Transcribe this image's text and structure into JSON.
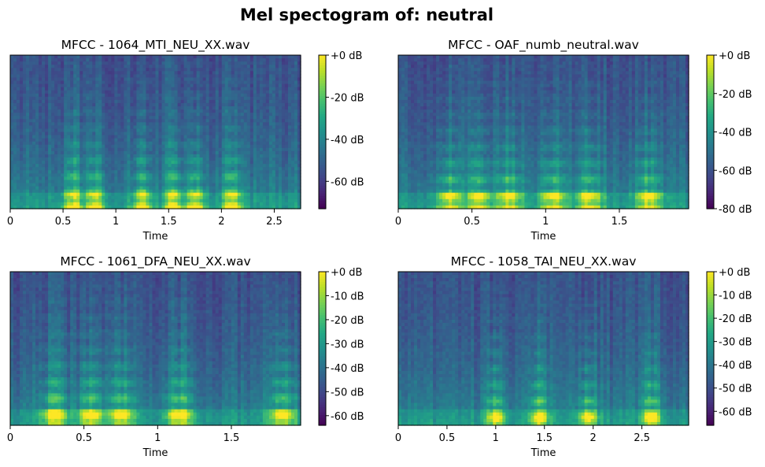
{
  "figure": {
    "suptitle": "Mel spectogram of: neutral"
  },
  "chart_data": [
    {
      "type": "heatmap",
      "title": "MFCC - 1064_MTI_NEU_XX.wav",
      "xlabel": "Time",
      "x_ticks": [
        "0",
        "0.5",
        "1",
        "1.5",
        "2",
        "2.5"
      ],
      "x_tick_values": [
        0,
        0.5,
        1,
        1.5,
        2,
        2.5
      ],
      "xlim": [
        0,
        2.75
      ],
      "colorbar": {
        "labels": [
          "+0 dB",
          "-20 dB",
          "-40 dB",
          "-60 dB"
        ],
        "values": [
          0,
          -20,
          -40,
          -60
        ],
        "range": [
          -73,
          0
        ]
      },
      "colormap": "viridis",
      "energy_bursts": [
        0.6,
        0.8,
        1.25,
        1.55,
        1.75,
        2.1
      ]
    },
    {
      "type": "heatmap",
      "title": "MFCC - OAF_numb_neutral.wav",
      "xlabel": "Time",
      "x_ticks": [
        "0",
        "0.5",
        "1",
        "1.5"
      ],
      "x_tick_values": [
        0,
        0.5,
        1,
        1.5
      ],
      "xlim": [
        0,
        1.97
      ],
      "colorbar": {
        "labels": [
          "+0 dB",
          "-20 dB",
          "-40 dB",
          "-60 dB",
          "-80 dB"
        ],
        "values": [
          0,
          -20,
          -40,
          -60,
          -80
        ],
        "range": [
          -80,
          0
        ]
      },
      "colormap": "viridis",
      "energy_bursts": [
        0.35,
        0.55,
        0.75,
        1.05,
        1.3,
        1.7
      ]
    },
    {
      "type": "heatmap",
      "title": "MFCC - 1061_DFA_NEU_XX.wav",
      "xlabel": "Time",
      "x_ticks": [
        "0",
        "0.5",
        "1",
        "1.5"
      ],
      "x_tick_values": [
        0,
        0.5,
        1,
        1.5
      ],
      "xlim": [
        0,
        1.97
      ],
      "colorbar": {
        "labels": [
          "+0 dB",
          "-10 dB",
          "-20 dB",
          "-30 dB",
          "-40 dB",
          "-50 dB",
          "-60 dB"
        ],
        "values": [
          0,
          -10,
          -20,
          -30,
          -40,
          -50,
          -60
        ],
        "range": [
          -64,
          0
        ]
      },
      "colormap": "viridis",
      "energy_bursts": [
        0.3,
        0.55,
        0.75,
        1.15,
        1.85
      ]
    },
    {
      "type": "heatmap",
      "title": "MFCC - 1058_TAI_NEU_XX.wav",
      "xlabel": "Time",
      "x_ticks": [
        "0",
        "0.5",
        "1",
        "1.5",
        "2",
        "2.5"
      ],
      "x_tick_values": [
        0,
        0.5,
        1,
        1.5,
        2,
        2.5
      ],
      "xlim": [
        0,
        2.98
      ],
      "colorbar": {
        "labels": [
          "+0 dB",
          "-10 dB",
          "-20 dB",
          "-30 dB",
          "-40 dB",
          "-50 dB",
          "-60 dB"
        ],
        "values": [
          0,
          -10,
          -20,
          -30,
          -40,
          -50,
          -60
        ],
        "range": [
          -66,
          0
        ]
      },
      "colormap": "viridis",
      "energy_bursts": [
        1.0,
        1.45,
        1.95,
        2.6
      ]
    }
  ]
}
